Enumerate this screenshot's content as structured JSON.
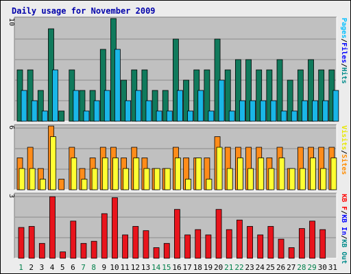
{
  "chart_data": [
    {
      "type": "bar",
      "title": "Daily usage for November 2009",
      "categories": [
        "1",
        "2",
        "3",
        "4",
        "5",
        "6",
        "7",
        "8",
        "9",
        "10",
        "11",
        "12",
        "13",
        "14",
        "15",
        "16",
        "17",
        "18",
        "19",
        "20",
        "21",
        "22",
        "23",
        "24",
        "25",
        "26",
        "27",
        "28",
        "29",
        "30",
        "31"
      ],
      "weekend_days": [
        "1",
        "7",
        "8",
        "14",
        "15",
        "21",
        "22",
        "28",
        "29"
      ],
      "panels": [
        {
          "id": "pages-files-hits",
          "ymax_label": "10",
          "ylim": [
            0,
            10
          ],
          "right_labels": [
            {
              "text": "Pages",
              "color": "#00bfff"
            },
            {
              "text": "/",
              "color": "#000000"
            },
            {
              "text": "Files",
              "color": "#0000ff"
            },
            {
              "text": "/",
              "color": "#000000"
            },
            {
              "text": "Hits",
              "color": "#008b8b"
            }
          ],
          "series": [
            {
              "name": "Hits",
              "color": "#107a5c",
              "values": [
                5,
                5,
                3,
                9,
                1,
                5,
                3,
                3,
                7,
                10,
                4,
                5,
                5,
                3,
                3,
                8,
                4,
                5,
                5,
                8,
                5,
                6,
                6,
                5,
                5,
                6,
                4,
                5,
                6,
                5,
                5
              ]
            },
            {
              "name": "Files",
              "color": "#0000ff",
              "values": [
                0,
                0,
                0,
                0,
                0,
                0,
                0,
                0,
                0,
                0,
                0,
                0,
                0,
                0,
                0,
                0,
                0,
                0,
                0,
                0,
                0,
                0,
                0,
                0,
                0,
                0,
                0,
                0,
                0,
                0,
                0
              ]
            },
            {
              "name": "Pages",
              "color": "#1ab6e8",
              "values": [
                3,
                2,
                1,
                5,
                0,
                3,
                1,
                2,
                3,
                7,
                2,
                3,
                2,
                1,
                1,
                3,
                1,
                3,
                1,
                4,
                1,
                2,
                2,
                2,
                2,
                1,
                1,
                2,
                2,
                2,
                3
              ]
            }
          ]
        },
        {
          "id": "visits-sites",
          "ymax_label": "6",
          "ylim": [
            0,
            6
          ],
          "right_labels": [
            {
              "text": "Visits",
              "color": "#e8e800"
            },
            {
              "text": "/",
              "color": "#000000"
            },
            {
              "text": "Sites",
              "color": "#ff8c00"
            }
          ],
          "series": [
            {
              "name": "Sites",
              "color": "#ff8c1a",
              "values": [
                3,
                4,
                2,
                6,
                1,
                4,
                2,
                3,
                4,
                4,
                3,
                4,
                3,
                2,
                2,
                4,
                3,
                3,
                3,
                5,
                4,
                4,
                4,
                4,
                3,
                4,
                2,
                4,
                4,
                4,
                4
              ]
            },
            {
              "name": "Visits",
              "color": "#ffff33",
              "values": [
                2,
                2,
                1,
                5,
                0,
                3,
                1,
                2,
                3,
                3,
                2,
                3,
                2,
                2,
                2,
                3,
                1,
                3,
                1,
                4,
                2,
                3,
                2,
                3,
                2,
                3,
                2,
                2,
                3,
                2,
                3
              ]
            }
          ]
        },
        {
          "id": "kb",
          "ymax_label": "3",
          "ylim": [
            0,
            3
          ],
          "right_labels": [
            {
              "text": "KB F",
              "color": "#ff0000"
            },
            {
              "text": "/",
              "color": "#000000"
            },
            {
              "text": "KB In",
              "color": "#0000ff"
            },
            {
              "text": "/",
              "color": "#000000"
            },
            {
              "text": "KB Out",
              "color": "#008b8b"
            }
          ],
          "series": [
            {
              "name": "KB F",
              "color": "#e8141c",
              "values": [
                1.45,
                1.5,
                0.7,
                2.9,
                0.3,
                1.75,
                0.7,
                0.8,
                2.1,
                2.85,
                1.1,
                1.5,
                1.3,
                0.5,
                0.7,
                2.3,
                1.1,
                1.35,
                1.1,
                2.3,
                1.35,
                1.8,
                1.5,
                1.1,
                1.5,
                0.9,
                0.5,
                1.4,
                1.75,
                1.35,
                0
              ]
            }
          ]
        }
      ]
    }
  ]
}
